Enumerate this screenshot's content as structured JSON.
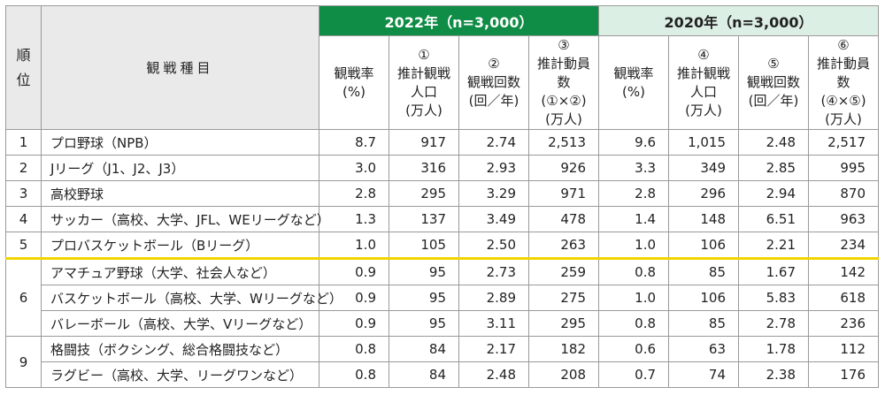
{
  "header": {
    "rank_label_1": "順",
    "rank_label_2": "位",
    "sport_label": "観戦種目",
    "group_2022": "2022年（n=3,000）",
    "group_2020": "2020年（n=3,000）",
    "columns": [
      {
        "mark": "",
        "l1": "観戦率",
        "l2": "(%)",
        "l3": ""
      },
      {
        "mark": "①",
        "l1": "推計観戦",
        "l2": "人口",
        "l3": "(万人)"
      },
      {
        "mark": "②",
        "l1": "観戦回数",
        "l2": "(回／年)",
        "l3": ""
      },
      {
        "mark": "③",
        "l1": "推計動員数",
        "l2": "(①×②)",
        "l3": "(万人)"
      },
      {
        "mark": "",
        "l1": "観戦率",
        "l2": "(%)",
        "l3": ""
      },
      {
        "mark": "④",
        "l1": "推計観戦",
        "l2": "人口",
        "l3": "(万人)"
      },
      {
        "mark": "⑤",
        "l1": "観戦回数",
        "l2": "(回／年)",
        "l3": ""
      },
      {
        "mark": "⑥",
        "l1": "推計動員数",
        "l2": "(④×⑤)",
        "l3": "(万人)"
      }
    ]
  },
  "rows": [
    {
      "rank": "1",
      "sport": "プロ野球（NPB）",
      "v": [
        "8.7",
        "917",
        "2.74",
        "2,513",
        "9.6",
        "1,015",
        "2.48",
        "2,517"
      ]
    },
    {
      "rank": "2",
      "sport": "Jリーグ（J1、J2、J3）",
      "v": [
        "3.0",
        "316",
        "2.93",
        "926",
        "3.3",
        "349",
        "2.85",
        "995"
      ]
    },
    {
      "rank": "3",
      "sport": "高校野球",
      "v": [
        "2.8",
        "295",
        "3.29",
        "971",
        "2.8",
        "296",
        "2.94",
        "870"
      ]
    },
    {
      "rank": "4",
      "sport": "サッカー（高校、大学、JFL、WEリーグなど）",
      "v": [
        "1.3",
        "137",
        "3.49",
        "478",
        "1.4",
        "148",
        "6.51",
        "963"
      ]
    },
    {
      "rank": "5",
      "sport": "プロバスケットボール（Bリーグ）",
      "v": [
        "1.0",
        "105",
        "2.50",
        "263",
        "1.0",
        "106",
        "2.21",
        "234"
      ]
    },
    {
      "rank": "6",
      "sport": "アマチュア野球（大学、社会人など）",
      "v": [
        "0.9",
        "95",
        "2.73",
        "259",
        "0.8",
        "85",
        "1.67",
        "142"
      ]
    },
    {
      "rank": "",
      "sport": "バスケットボール（高校、大学、Wリーグなど）",
      "v": [
        "0.9",
        "95",
        "2.89",
        "275",
        "1.0",
        "106",
        "5.83",
        "618"
      ]
    },
    {
      "rank": "",
      "sport": "バレーボール（高校、大学、Vリーグなど）",
      "v": [
        "0.9",
        "95",
        "3.11",
        "295",
        "0.8",
        "85",
        "2.78",
        "236"
      ]
    },
    {
      "rank": "9",
      "sport": "格闘技（ボクシング、総合格闘技など）",
      "v": [
        "0.8",
        "84",
        "2.17",
        "182",
        "0.6",
        "63",
        "1.78",
        "112"
      ]
    },
    {
      "rank": "",
      "sport": "ラグビー（高校、大学、リーグワンなど）",
      "v": [
        "0.8",
        "84",
        "2.48",
        "208",
        "0.7",
        "74",
        "2.38",
        "176"
      ]
    }
  ],
  "colors": {
    "header_green": "#0f8c45",
    "header_light_green": "#dcefe4",
    "header_gray": "#eaeaea",
    "separator_yellow": "#f2d500"
  }
}
